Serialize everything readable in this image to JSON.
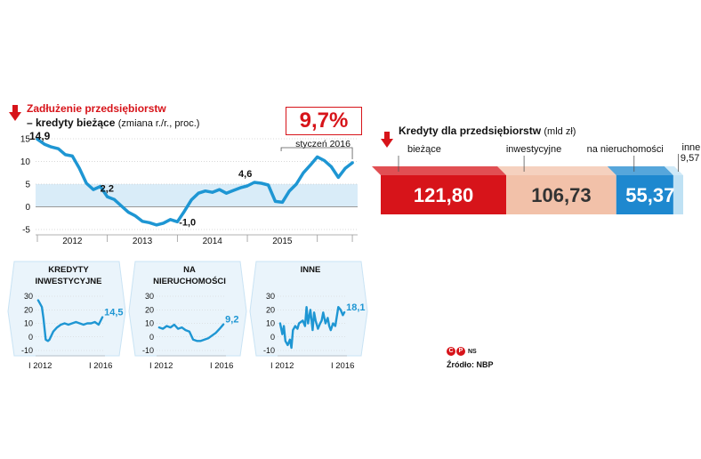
{
  "main_chart": {
    "title_line1": "Zadłużenie przedsiębiorstw",
    "title_line2": "– kredyty bieżące",
    "unit": "(zmiana r./r., proc.)",
    "callout_value": "9,7%",
    "callout_label": "styczeń 2016",
    "start_label": "14,9",
    "annotations": [
      "2,2",
      "-1,0",
      "4,6"
    ]
  },
  "small_charts": [
    {
      "title_line1": "KREDYTY",
      "title_line2": "INWESTYCYJNE",
      "end_label": "14,5"
    },
    {
      "title_line1": "NA",
      "title_line2": "NIERUCHOMOŚCI",
      "end_label": "9,2"
    },
    {
      "title_line1": "INNE",
      "title_line2": "",
      "end_label": "18,1"
    }
  ],
  "bar_chart": {
    "title": "Kredyty dla przedsiębiorstw",
    "unit": "(mld zł)"
  },
  "footer": {
    "credits": "NS",
    "source": "Źródło: NBP"
  },
  "colors": {
    "red": "#d7141a",
    "line_blue": "#1e96d3",
    "band_blue": "#d9ecf8",
    "salmon": "#f2c1a9",
    "blue_bar": "#1e88cf",
    "light_blue": "#bfe1f4"
  },
  "chart_data": [
    {
      "type": "line",
      "title": "Zadłużenie przedsiębiorstw – kredyty bieżące",
      "ylabel": "zmiana r./r., proc.",
      "ylim": [
        -5,
        15
      ],
      "yticks": [
        -5,
        0,
        5,
        10,
        15
      ],
      "xticks": [
        "2012",
        "2013",
        "2014",
        "2015"
      ],
      "grid": true,
      "band": [
        0,
        5
      ],
      "x": [
        2011.5,
        2011.6,
        2011.7,
        2011.8,
        2011.9,
        2012.0,
        2012.1,
        2012.2,
        2012.3,
        2012.4,
        2012.5,
        2012.6,
        2012.7,
        2012.8,
        2012.9,
        2013.0,
        2013.1,
        2013.2,
        2013.3,
        2013.4,
        2013.5,
        2013.6,
        2013.7,
        2013.8,
        2013.9,
        2014.0,
        2014.1,
        2014.2,
        2014.3,
        2014.4,
        2014.5,
        2014.6,
        2014.7,
        2014.8,
        2014.9,
        2015.0,
        2015.1,
        2015.2,
        2015.3,
        2015.4,
        2015.5,
        2015.6,
        2015.7,
        2015.8,
        2015.9,
        2016.0
      ],
      "y": [
        14.9,
        13.8,
        13.2,
        12.8,
        11.5,
        11.2,
        8.5,
        5.2,
        3.8,
        4.5,
        2.2,
        1.6,
        0.2,
        -1.2,
        -2.0,
        -3.2,
        -3.5,
        -4.0,
        -3.6,
        -2.8,
        -3.3,
        -1.0,
        1.5,
        3.0,
        3.5,
        3.2,
        3.8,
        3.0,
        3.6,
        4.2,
        4.6,
        5.4,
        5.2,
        4.8,
        1.2,
        1.0,
        3.5,
        5.0,
        7.5,
        9.2,
        11.0,
        10.2,
        8.8,
        6.5,
        8.5,
        9.7
      ],
      "annotations": [
        {
          "x": 2011.5,
          "y": 14.9,
          "label": "14,9"
        },
        {
          "x": 2012.5,
          "y": 2.2,
          "label": "2,2"
        },
        {
          "x": 2013.6,
          "y": -1.0,
          "label": "-1,0"
        },
        {
          "x": 2014.5,
          "y": 4.6,
          "label": "4,6"
        },
        {
          "x": 2016.0,
          "y": 9.7,
          "label": "9,7%"
        }
      ]
    },
    {
      "type": "line",
      "title": "Kredyty inwestycyjne",
      "ylim": [
        -10,
        30
      ],
      "yticks": [
        -10,
        0,
        10,
        20,
        30
      ],
      "xticks": [
        "I 2012",
        "I 2016"
      ],
      "x": [
        2011.75,
        2011.9,
        2012.0,
        2012.1,
        2012.25,
        2012.4,
        2012.5,
        2012.75,
        2013.0,
        2013.25,
        2013.5,
        2013.75,
        2014.0,
        2014.25,
        2014.5,
        2014.75,
        2015.0,
        2015.25,
        2015.5,
        2015.75,
        2016.0
      ],
      "y": [
        27,
        24,
        22,
        14,
        -2,
        -3,
        -2,
        4,
        7,
        9,
        10,
        9,
        10,
        11,
        10,
        9,
        10,
        10,
        11,
        9,
        14.5
      ]
    },
    {
      "type": "line",
      "title": "Na nieruchomości",
      "ylim": [
        -10,
        30
      ],
      "yticks": [
        -10,
        0,
        10,
        20,
        30
      ],
      "xticks": [
        "I 2012",
        "I 2016"
      ],
      "x": [
        2011.75,
        2012.0,
        2012.25,
        2012.5,
        2012.75,
        2013.0,
        2013.25,
        2013.5,
        2013.75,
        2014.0,
        2014.25,
        2014.5,
        2014.75,
        2015.0,
        2015.25,
        2015.5,
        2015.75,
        2016.0
      ],
      "y": [
        7,
        6,
        8,
        7,
        9,
        6,
        7,
        5,
        4,
        -2,
        -3,
        -3,
        -2,
        -1,
        1,
        3,
        6,
        9.2
      ]
    },
    {
      "type": "line",
      "title": "Inne",
      "ylim": [
        -10,
        30
      ],
      "yticks": [
        -10,
        0,
        10,
        20,
        30
      ],
      "xticks": [
        "I 2012",
        "I 2016"
      ],
      "x": [
        2011.75,
        2011.9,
        2012.0,
        2012.1,
        2012.25,
        2012.4,
        2012.5,
        2012.6,
        2012.75,
        2012.9,
        2013.0,
        2013.25,
        2013.4,
        2013.5,
        2013.6,
        2013.75,
        2013.9,
        2014.0,
        2014.1,
        2014.25,
        2014.4,
        2014.5,
        2014.6,
        2014.75,
        2014.9,
        2015.0,
        2015.1,
        2015.25,
        2015.4,
        2015.5,
        2015.6,
        2015.75,
        2015.9,
        2016.0
      ],
      "y": [
        10,
        2,
        8,
        -3,
        -6,
        -2,
        -8,
        5,
        8,
        6,
        10,
        12,
        8,
        22,
        10,
        20,
        5,
        18,
        12,
        6,
        10,
        12,
        18,
        10,
        14,
        8,
        5,
        10,
        8,
        15,
        22,
        20,
        16,
        18.1
      ]
    },
    {
      "type": "bar",
      "title": "Kredyty dla przedsiębiorstw",
      "ylabel": "mld zł",
      "stacked": true,
      "categories": [
        "bieżące",
        "inwestycyjne",
        "na nieruchomości",
        "inne"
      ],
      "values": [
        121.8,
        106.73,
        55.37,
        9.57
      ],
      "value_labels": [
        "121,80",
        "106,73",
        "55,37",
        "9,57"
      ]
    }
  ]
}
